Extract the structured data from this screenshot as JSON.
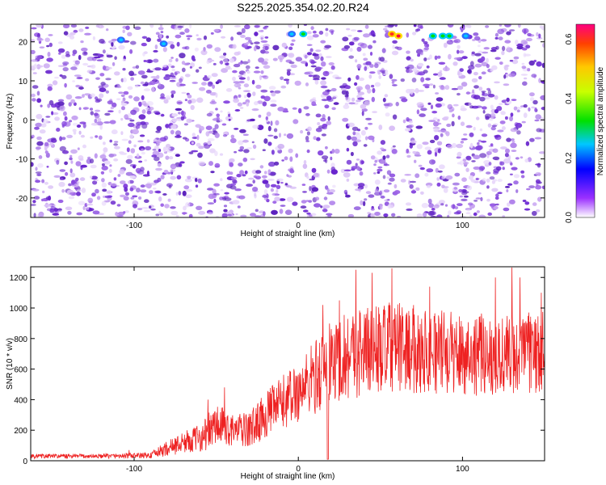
{
  "title": "S225.2025.354.02.20.R24",
  "chart_data": [
    {
      "type": "heatmap",
      "xlabel": "Height of straight line (km)",
      "ylabel": "Frequency (Hz)",
      "xlim": [
        -163,
        150
      ],
      "ylim": [
        -25,
        24.5
      ],
      "x_ticks": [
        -100,
        0,
        100
      ],
      "y_ticks": [
        -20,
        -10,
        0,
        10,
        20
      ],
      "colorbar": {
        "label": "Normalized spectral amplitude",
        "range": [
          0.0,
          0.65
        ],
        "ticks": [
          0.0,
          0.2,
          0.4,
          0.6
        ]
      },
      "hot_spots": [
        {
          "x": -108,
          "y": 20.5,
          "value": 0.25
        },
        {
          "x": -82,
          "y": 19.5,
          "value": 0.22
        },
        {
          "x": -4,
          "y": 22,
          "value": 0.22
        },
        {
          "x": 3,
          "y": 22,
          "value": 0.3
        },
        {
          "x": 57,
          "y": 22,
          "value": 0.5
        },
        {
          "x": 61,
          "y": 21.5,
          "value": 0.55
        },
        {
          "x": 82,
          "y": 21.5,
          "value": 0.3
        },
        {
          "x": 88,
          "y": 21.5,
          "value": 0.3
        },
        {
          "x": 92,
          "y": 21.5,
          "value": 0.3
        },
        {
          "x": 102,
          "y": 21.5,
          "value": 0.25
        }
      ]
    },
    {
      "type": "line",
      "xlabel": "Height of straight line (km)",
      "ylabel": "SNR (10 * v/v)",
      "xlim": [
        -163,
        150
      ],
      "ylim": [
        0,
        1270
      ],
      "x_ticks": [
        -100,
        0,
        100
      ],
      "y_ticks": [
        0,
        200,
        400,
        600,
        800,
        1000,
        1200
      ],
      "color": "#ee2222",
      "envelope": {
        "x": [
          -163,
          -120,
          -90,
          -80,
          -70,
          -60,
          -50,
          -40,
          -30,
          -20,
          -10,
          0,
          10,
          20,
          30,
          40,
          60,
          80,
          100,
          120,
          140,
          150
        ],
        "mean": [
          30,
          30,
          35,
          80,
          120,
          150,
          230,
          200,
          200,
          300,
          380,
          450,
          550,
          640,
          700,
          720,
          740,
          720,
          700,
          690,
          700,
          710
        ],
        "amp": [
          15,
          15,
          20,
          50,
          70,
          90,
          150,
          100,
          120,
          150,
          180,
          200,
          250,
          280,
          300,
          300,
          300,
          280,
          270,
          270,
          270,
          270
        ]
      },
      "peaks": [
        {
          "x": -103,
          "y": 70
        },
        {
          "x": -55,
          "y": 400
        },
        {
          "x": -45,
          "y": 480
        },
        {
          "x": 15,
          "y": 1020
        },
        {
          "x": 25,
          "y": 1050
        },
        {
          "x": 35,
          "y": 1250
        },
        {
          "x": 45,
          "y": 1230
        },
        {
          "x": 57,
          "y": 1260
        },
        {
          "x": 80,
          "y": 1140
        },
        {
          "x": 120,
          "y": 1200
        },
        {
          "x": 130,
          "y": 1265
        },
        {
          "x": 135,
          "y": 1200
        },
        {
          "x": 148,
          "y": 1100
        }
      ]
    }
  ]
}
